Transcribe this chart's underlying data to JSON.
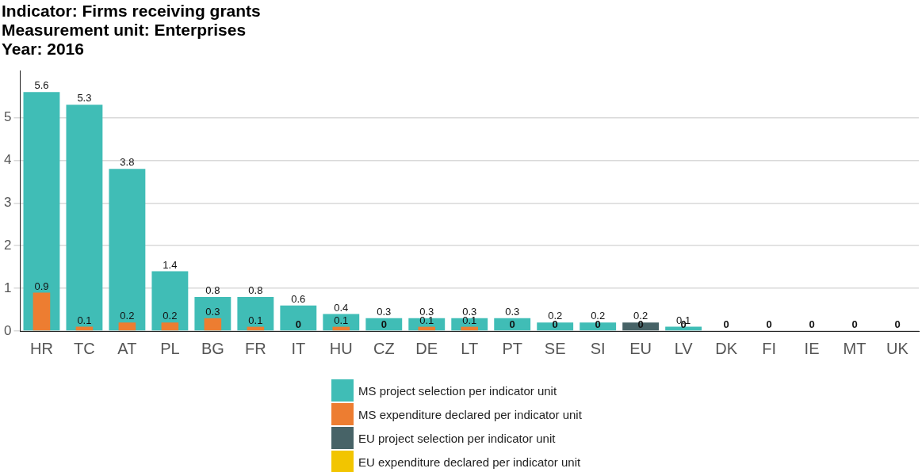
{
  "chart_data": {
    "type": "bar",
    "title": "Indicator: Firms receiving grants\nMeasurement unit: Enterprises\nYear: 2016",
    "categories": [
      "HR",
      "TC",
      "AT",
      "PL",
      "BG",
      "FR",
      "IT",
      "HU",
      "CZ",
      "DE",
      "LT",
      "PT",
      "SE",
      "SI",
      "EU",
      "LV",
      "DK",
      "FI",
      "IE",
      "MT",
      "UK"
    ],
    "series": [
      {
        "name": "MS project selection per indicator unit",
        "color": "#40bdb6",
        "values": [
          5.6,
          5.3,
          3.8,
          1.4,
          0.8,
          0.8,
          0.6,
          0.4,
          0.3,
          0.3,
          0.3,
          0.3,
          0.2,
          0.2,
          null,
          0.1,
          0,
          0,
          0,
          0,
          0
        ]
      },
      {
        "name": "MS expenditure declared per indicator unit",
        "color": "#ed7d31",
        "values": [
          0.9,
          0.1,
          0.2,
          0.2,
          0.3,
          0.1,
          0,
          0.1,
          0,
          0.1,
          0.1,
          0,
          0,
          0,
          null,
          0,
          0,
          0,
          0,
          0,
          0
        ],
        "value_labels": [
          "0.9",
          "0.1",
          "0.2",
          "0.2",
          "0.3",
          "0.1",
          "0",
          "0.1",
          "0",
          "0.1",
          "0.1",
          "0",
          "0",
          "0",
          null,
          "0",
          null,
          null,
          null,
          null,
          null
        ]
      },
      {
        "name": "EU project selection per indicator unit",
        "color": "#476367",
        "values": [
          null,
          null,
          null,
          null,
          null,
          null,
          null,
          null,
          null,
          null,
          null,
          null,
          null,
          null,
          0.2,
          null,
          null,
          null,
          null,
          null,
          null
        ]
      },
      {
        "name": "EU expenditure declared per indicator unit",
        "color": "#f2c500",
        "values": [
          null,
          null,
          null,
          null,
          null,
          null,
          null,
          null,
          null,
          null,
          null,
          null,
          null,
          null,
          0,
          null,
          null,
          null,
          null,
          null,
          null
        ]
      }
    ],
    "ylim": [
      0,
      6.1
    ],
    "yticks": [
      0,
      1,
      2,
      3,
      4,
      5
    ],
    "grid": "y",
    "data_labels": true,
    "legend": "bottom"
  }
}
